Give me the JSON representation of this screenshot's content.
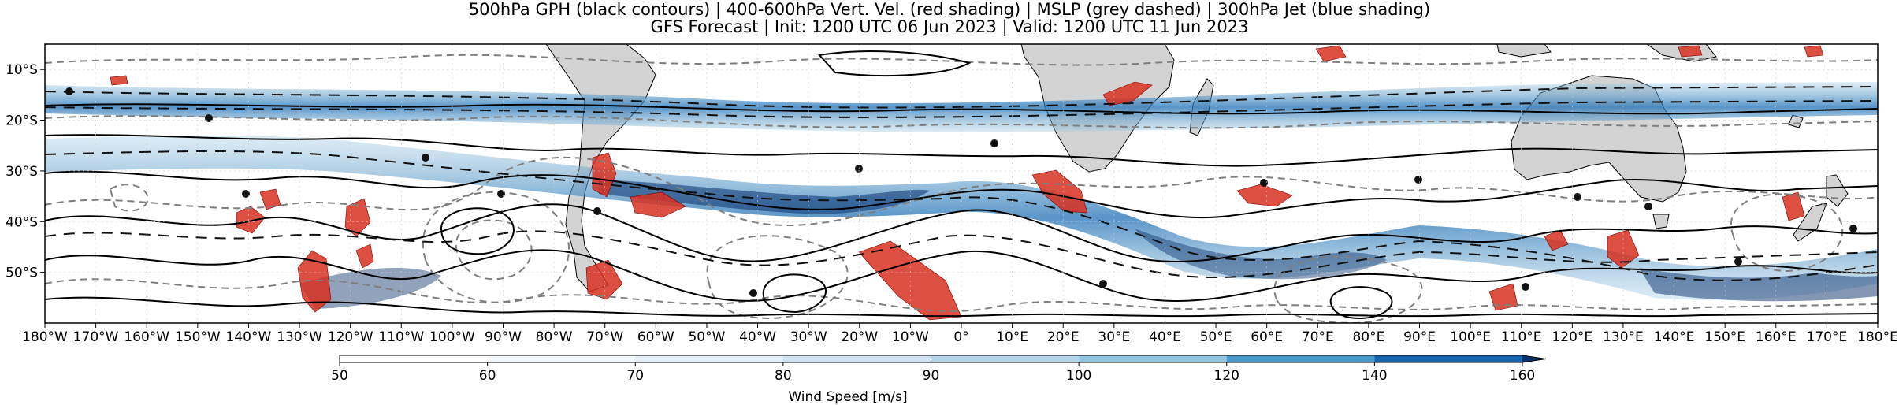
{
  "title": {
    "line1": "500hPa GPH (black contours) | 400-600hPa Vert. Vel. (red shading) | MSLP (grey dashed) | 300hPa Jet (blue shading)",
    "line2": "GFS Forecast | Init: 1200 UTC 06 Jun 2023 | Valid: 1200 UTC 11 Jun 2023"
  },
  "map": {
    "lon_range": [
      -180,
      180
    ],
    "lat_range": [
      -60,
      -5
    ],
    "lon_ticks": [
      {
        "value": -180,
        "label": "180°W"
      },
      {
        "value": -170,
        "label": "170°W"
      },
      {
        "value": -160,
        "label": "160°W"
      },
      {
        "value": -150,
        "label": "150°W"
      },
      {
        "value": -140,
        "label": "140°W"
      },
      {
        "value": -130,
        "label": "130°W"
      },
      {
        "value": -120,
        "label": "120°W"
      },
      {
        "value": -110,
        "label": "110°W"
      },
      {
        "value": -100,
        "label": "100°W"
      },
      {
        "value": -90,
        "label": "90°W"
      },
      {
        "value": -80,
        "label": "80°W"
      },
      {
        "value": -70,
        "label": "70°W"
      },
      {
        "value": -60,
        "label": "60°W"
      },
      {
        "value": -50,
        "label": "50°W"
      },
      {
        "value": -40,
        "label": "40°W"
      },
      {
        "value": -30,
        "label": "30°W"
      },
      {
        "value": -20,
        "label": "20°W"
      },
      {
        "value": -10,
        "label": "10°W"
      },
      {
        "value": 0,
        "label": "0°"
      },
      {
        "value": 10,
        "label": "10°E"
      },
      {
        "value": 20,
        "label": "20°E"
      },
      {
        "value": 30,
        "label": "30°E"
      },
      {
        "value": 40,
        "label": "40°E"
      },
      {
        "value": 50,
        "label": "50°E"
      },
      {
        "value": 60,
        "label": "60°E"
      },
      {
        "value": 70,
        "label": "70°E"
      },
      {
        "value": 80,
        "label": "80°E"
      },
      {
        "value": 90,
        "label": "90°E"
      },
      {
        "value": 100,
        "label": "100°E"
      },
      {
        "value": 110,
        "label": "110°E"
      },
      {
        "value": 120,
        "label": "120°E"
      },
      {
        "value": 130,
        "label": "130°E"
      },
      {
        "value": 140,
        "label": "140°E"
      },
      {
        "value": 150,
        "label": "150°E"
      },
      {
        "value": 160,
        "label": "160°E"
      },
      {
        "value": 170,
        "label": "170°E"
      },
      {
        "value": 180,
        "label": "180°E"
      }
    ],
    "lat_ticks": [
      {
        "value": -10,
        "label": "10°S"
      },
      {
        "value": -20,
        "label": "20°S"
      },
      {
        "value": -30,
        "label": "30°S"
      },
      {
        "value": -40,
        "label": "40°S"
      },
      {
        "value": -50,
        "label": "50°S"
      }
    ],
    "colors": {
      "land": "#d3d3d3",
      "gph_contour": "#000000",
      "mslp_contour": "#808080",
      "vertical_velocity": "#d7301f",
      "jet_light": "#c6dbef",
      "jet_mid": "#6baed6",
      "jet_dark": "#08306b"
    }
  },
  "colorbar": {
    "label": "Wind Speed [m/s]",
    "range": [
      50,
      165
    ],
    "ticks": [
      {
        "value": 50,
        "label": "50"
      },
      {
        "value": 60,
        "label": "60"
      },
      {
        "value": 70,
        "label": "70"
      },
      {
        "value": 80,
        "label": "80"
      },
      {
        "value": 90,
        "label": "90"
      },
      {
        "value": 100,
        "label": "100"
      },
      {
        "value": 120,
        "label": "120"
      },
      {
        "value": 140,
        "label": "140"
      },
      {
        "value": 160,
        "label": "160"
      }
    ],
    "bins": [
      {
        "from": 50,
        "to": 60,
        "color": "#ffffff"
      },
      {
        "from": 60,
        "to": 70,
        "color": "#f3f8fd"
      },
      {
        "from": 70,
        "to": 80,
        "color": "#e3eef9"
      },
      {
        "from": 80,
        "to": 90,
        "color": "#cfe1f2"
      },
      {
        "from": 90,
        "to": 100,
        "color": "#b5d4e9"
      },
      {
        "from": 100,
        "to": 120,
        "color": "#93c4de"
      },
      {
        "from": 120,
        "to": 140,
        "color": "#4a98c9"
      },
      {
        "from": 140,
        "to": 160,
        "color": "#1764ab"
      },
      {
        "from": 160,
        "to": 165,
        "color": "#08306b"
      }
    ]
  }
}
